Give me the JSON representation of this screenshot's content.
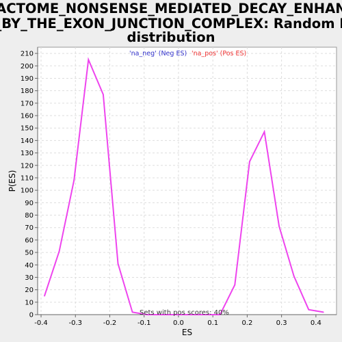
{
  "chart_data": {
    "type": "line",
    "title_lines": [
      "REACTOME_NONSENSE_MEDIATED_DECAY_ENHANCE",
      "D_BY_THE_EXON_JUNCTION_COMPLEX: Random ES",
      "distribution"
    ],
    "xlabel": "ES",
    "ylabel": "P(ES)",
    "xlim": [
      -0.41,
      0.46
    ],
    "ylim": [
      0,
      215
    ],
    "x_ticks": [
      "-0.4",
      "-0.3",
      "-0.2",
      "-0.1",
      "0.0",
      "0.1",
      "0.2",
      "0.3",
      "0.4"
    ],
    "y_ticks": [
      "0",
      "10",
      "20",
      "30",
      "40",
      "50",
      "60",
      "70",
      "80",
      "90",
      "100",
      "110",
      "120",
      "130",
      "140",
      "150",
      "160",
      "170",
      "180",
      "190",
      "200",
      "210"
    ],
    "grid": true,
    "legend": [
      {
        "label": "'na_neg' (Neg ES)",
        "color": "#3333cc"
      },
      {
        "label": "'na_pos' (Pos ES)",
        "color": "#ee3333"
      }
    ],
    "series": [
      {
        "color": "#ee44ee",
        "x": [
          -0.39,
          -0.347,
          -0.304,
          -0.262,
          -0.219,
          -0.176,
          -0.134,
          -0.091,
          0.121,
          0.164,
          0.207,
          0.25,
          0.293,
          0.336,
          0.379,
          0.422
        ],
        "y": [
          15,
          51,
          108,
          205,
          177,
          41,
          2,
          0,
          0,
          24,
          123,
          147,
          71,
          31,
          4,
          2
        ]
      }
    ],
    "annotation": "Sets with pos scores: 40%"
  }
}
